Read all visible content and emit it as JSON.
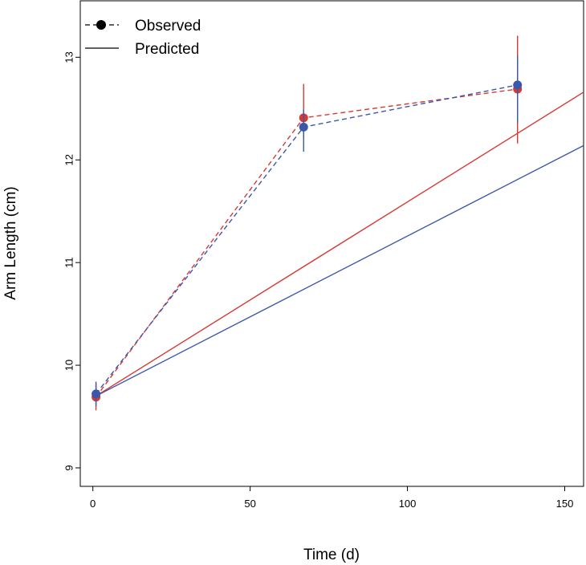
{
  "chart_data": {
    "type": "line",
    "xlabel": "Time (d)",
    "ylabel": "Arm Length (cm)",
    "xlim": [
      -4,
      156
    ],
    "ylim": [
      8.82,
      13.55
    ],
    "xticks": [
      0,
      50,
      100,
      150
    ],
    "yticks": [
      9,
      10,
      11,
      12,
      13
    ],
    "grid": false,
    "legend": {
      "placement": "top-left",
      "entries": [
        {
          "label": "Observed",
          "style": "dashed-with-point"
        },
        {
          "label": "Predicted",
          "style": "solid"
        }
      ]
    },
    "observed": [
      {
        "color": "#d63a33",
        "x": [
          1,
          67,
          135
        ],
        "y": [
          9.69,
          12.41,
          12.69
        ],
        "err_low": [
          9.56,
          12.22,
          12.16
        ],
        "err_high": [
          9.82,
          12.74,
          13.21
        ]
      },
      {
        "color": "#3c57a8",
        "x": [
          1,
          67,
          135
        ],
        "y": [
          9.72,
          12.32,
          12.73
        ],
        "err_low": [
          9.6,
          12.08,
          12.36
        ],
        "err_high": [
          9.84,
          12.49,
          13.02
        ]
      }
    ],
    "predicted": [
      {
        "color": "#d63a33",
        "x": [
          1,
          156
        ],
        "y": [
          9.7,
          12.66
        ]
      },
      {
        "color": "#3c57a8",
        "x": [
          1,
          156
        ],
        "y": [
          9.7,
          12.14
        ]
      }
    ]
  }
}
